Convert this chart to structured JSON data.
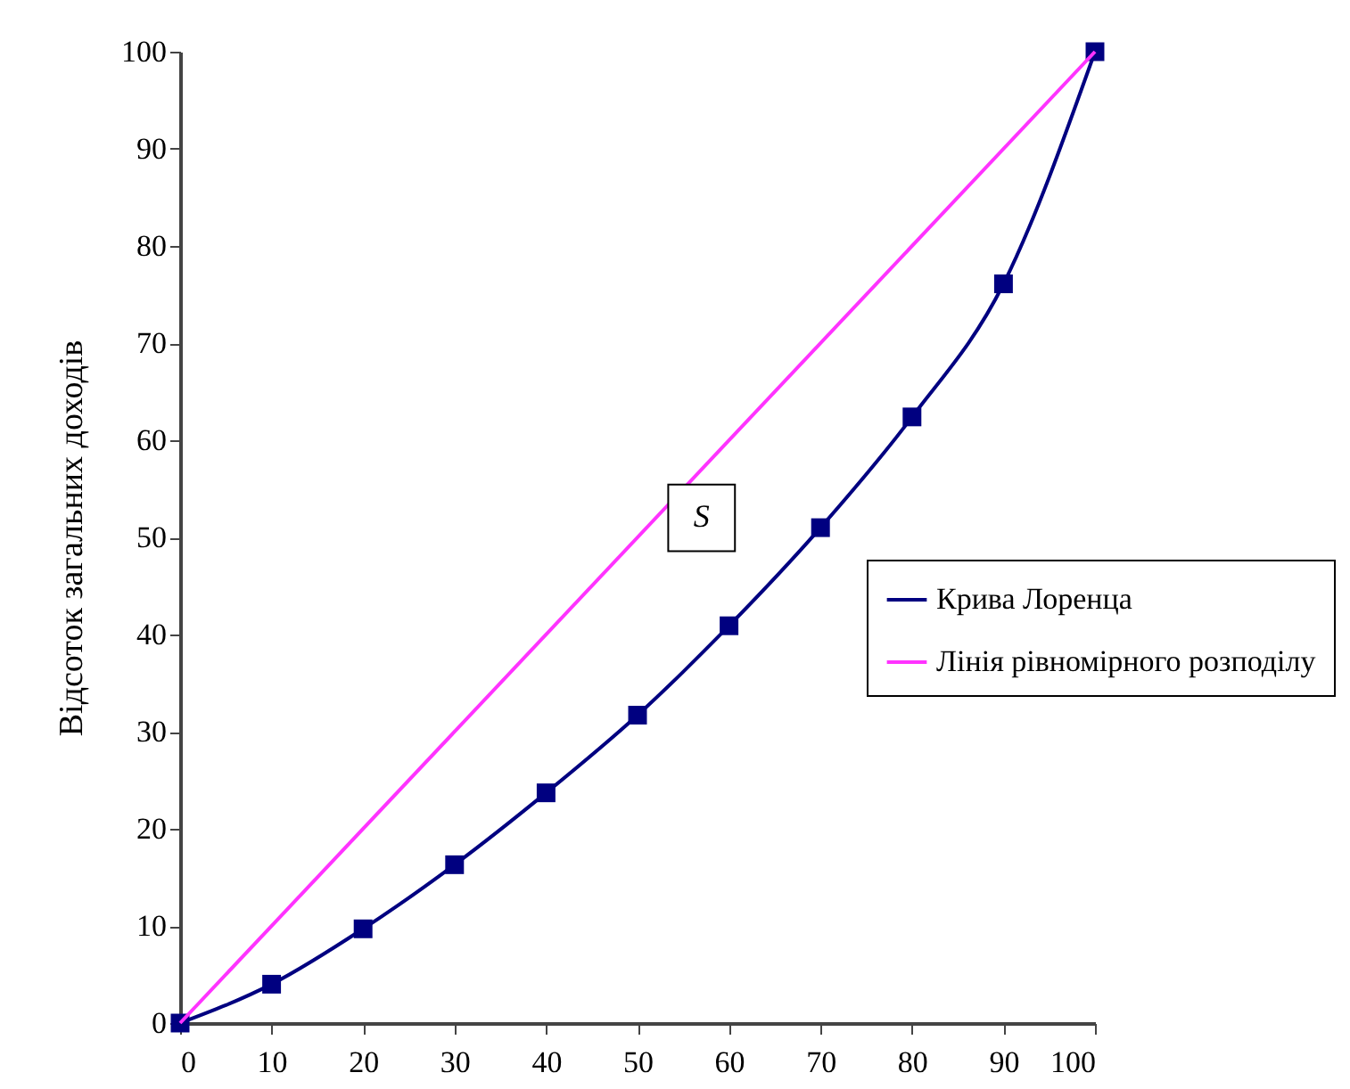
{
  "chart_data": {
    "type": "line",
    "ylabel": "Відсоток загальних доходів",
    "x": [
      0,
      10,
      20,
      30,
      40,
      50,
      60,
      70,
      80,
      90,
      100
    ],
    "series": [
      {
        "name": "Крива Лоренца",
        "color": "#000080",
        "marker": "square",
        "values": [
          0,
          4.0,
          9.7,
          16.3,
          23.7,
          31.7,
          40.9,
          51.0,
          62.4,
          76.1,
          100
        ]
      },
      {
        "name": "Лінія рівномірного розподілу",
        "color": "#ff33ff",
        "marker": "none",
        "x": [
          0,
          100
        ],
        "values": [
          0,
          100
        ]
      }
    ],
    "annotations": [
      {
        "text": "S",
        "x": 57,
        "y": 52
      }
    ],
    "xlim": [
      0,
      100
    ],
    "ylim": [
      0,
      100
    ],
    "xticks": [
      0,
      10,
      20,
      30,
      40,
      50,
      60,
      70,
      80,
      90,
      100
    ],
    "yticks": [
      0,
      10,
      20,
      30,
      40,
      50,
      60,
      70,
      80,
      90,
      100
    ],
    "grid": false,
    "legend": "right"
  }
}
